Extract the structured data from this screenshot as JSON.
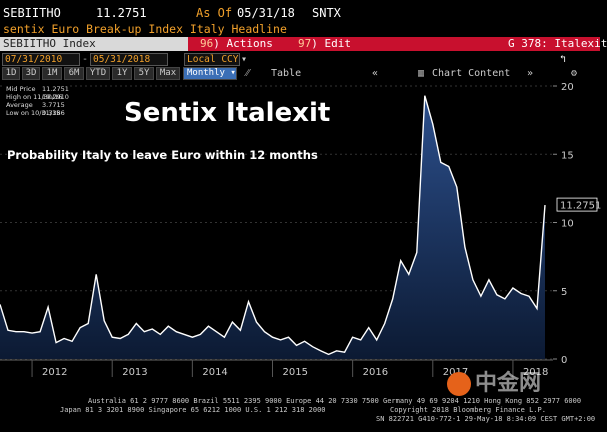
{
  "header": {
    "ticker": "SEBIITHO",
    "price": "11.2751",
    "as_of_label": "As Of",
    "as_of_date": "05/31/18",
    "source": "SNTX",
    "description": "sentix Euro Break-up Index Italy Headline",
    "index_label": "SEBIITHO Index",
    "actions_num": "96",
    "actions_label": "Actions",
    "edit_num": "97",
    "edit_label": "Edit",
    "graph_label": "G 378: Italexit"
  },
  "toolbar": {
    "start_date": "07/31/2010",
    "end_date": "05/31/2018",
    "currency": "Local CCY",
    "periods": [
      "1D",
      "3D",
      "1M",
      "6M",
      "YTD",
      "1Y",
      "5Y",
      "Max"
    ],
    "frequency": "Monthly",
    "table_label": "Table",
    "chart_content_label": "Chart Content"
  },
  "legend": {
    "rows": [
      {
        "label": "Mid Price",
        "value": "11.2751"
      },
      {
        "label": "High on 11/30/16",
        "value": "19.2910"
      },
      {
        "label": "Average",
        "value": "3.7715"
      },
      {
        "label": "Low on 10/31/15",
        "value": "0.3386"
      }
    ]
  },
  "colors": {
    "line": "#ffffff",
    "fill_top": "#2c4f8c",
    "fill_bottom": "#0c1a33",
    "accent": "#f2a12b",
    "header_red": "#c8102e"
  },
  "chart_data": {
    "type": "area",
    "title": "Sentix Italexit",
    "subtitle": "Probability Italy to leave Euro within 12 months",
    "last_value_label": "11.2751",
    "ylim": [
      0,
      20
    ],
    "yticks": [
      0,
      5,
      10,
      15,
      20
    ],
    "year_labels": [
      "2012",
      "2013",
      "2014",
      "2015",
      "2016",
      "2017",
      "2018"
    ],
    "year_positions": [
      2012.0,
      2013.0,
      2014.0,
      2015.0,
      2016.0,
      2017.0,
      2018.0
    ],
    "x": [
      2011.6,
      2011.7,
      2011.8,
      2011.9,
      2012.0,
      2012.1,
      2012.2,
      2012.3,
      2012.4,
      2012.5,
      2012.6,
      2012.7,
      2012.8,
      2012.9,
      2013.0,
      2013.1,
      2013.2,
      2013.3,
      2013.4,
      2013.5,
      2013.6,
      2013.7,
      2013.8,
      2013.9,
      2014.0,
      2014.1,
      2014.2,
      2014.3,
      2014.4,
      2014.5,
      2014.6,
      2014.7,
      2014.8,
      2014.9,
      2015.0,
      2015.1,
      2015.2,
      2015.3,
      2015.4,
      2015.5,
      2015.6,
      2015.7,
      2015.8,
      2015.9,
      2016.0,
      2016.1,
      2016.2,
      2016.3,
      2016.4,
      2016.5,
      2016.6,
      2016.7,
      2016.8,
      2016.9,
      2017.0,
      2017.1,
      2017.2,
      2017.3,
      2017.4,
      2017.5,
      2017.6,
      2017.7,
      2017.8,
      2017.9,
      2018.0,
      2018.1,
      2018.2,
      2018.3,
      2018.4
    ],
    "values": [
      4.0,
      2.1,
      2.0,
      2.0,
      1.9,
      2.0,
      3.8,
      1.2,
      1.5,
      1.3,
      2.3,
      2.6,
      6.2,
      2.8,
      1.6,
      1.5,
      1.8,
      2.6,
      2.0,
      2.2,
      1.8,
      2.4,
      2.0,
      1.8,
      1.6,
      1.8,
      2.4,
      2.0,
      1.6,
      2.7,
      2.1,
      4.2,
      2.7,
      2.0,
      1.6,
      1.4,
      1.6,
      1.0,
      1.3,
      0.9,
      0.6,
      0.34,
      0.6,
      0.5,
      1.6,
      1.4,
      2.3,
      1.4,
      2.6,
      4.4,
      7.2,
      6.2,
      7.8,
      19.29,
      17.2,
      14.4,
      14.1,
      12.6,
      8.2,
      5.8,
      4.6,
      5.8,
      4.7,
      4.4,
      5.2,
      4.8,
      4.6,
      3.7,
      11.2751
    ]
  },
  "footer": {
    "line1": "Australia 61 2 9777 8600  Brazil 5511 2395 9000  Europe 44 20 7330 7500  Germany 49 69 9204 1210  Hong Kong 852 2977 6000",
    "line2": "Japan 81 3 3201 8900         Singapore 65 6212 1000         U.S. 1 212 318 2000",
    "line3": "Copyright 2018 Bloomberg Finance L.P.",
    "line4": "SN 822721 G410-772-1 29-May-18  8:34:09 CEST GMT+2:00"
  },
  "watermark": {
    "text": "中金网"
  }
}
